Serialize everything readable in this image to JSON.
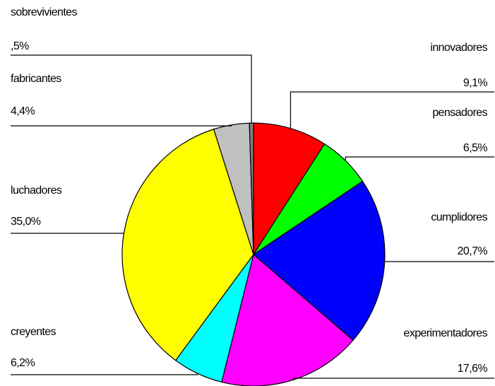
{
  "chart_data": {
    "type": "pie",
    "categories": [
      "innovadores",
      "pensadores",
      "cumplidores",
      "experimentadores",
      "creyentes",
      "luchadores",
      "fabricantes",
      "sobrevivientes"
    ],
    "values": [
      9.1,
      6.5,
      20.7,
      17.6,
      6.2,
      35.0,
      4.4,
      0.5
    ],
    "value_labels": [
      "9,1%",
      "6,5%",
      "20,7%",
      "17,6%",
      "6,2%",
      "35,0%",
      "4,4%",
      ",5%"
    ],
    "colors": [
      "#ff0000",
      "#00ff00",
      "#0000ff",
      "#ff00ff",
      "#00ffff",
      "#ffff00",
      "#c0c0c0",
      "#808080"
    ]
  }
}
